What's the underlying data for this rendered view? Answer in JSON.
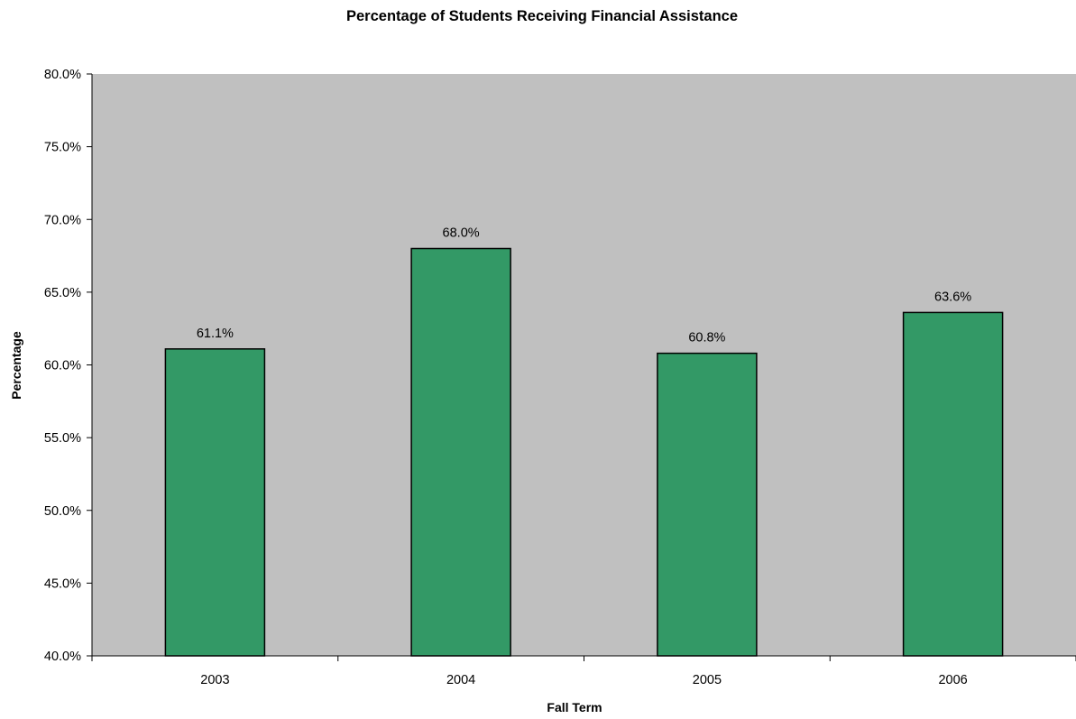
{
  "chart_data": {
    "type": "bar",
    "title": "Percentage of Students Receiving Financial Assistance",
    "xlabel": "Fall Term",
    "ylabel": "Percentage",
    "categories": [
      "2003",
      "2004",
      "2005",
      "2006"
    ],
    "values": [
      61.1,
      68.0,
      60.8,
      63.6
    ],
    "data_labels": [
      "61.1%",
      "68.0%",
      "60.8%",
      "63.6%"
    ],
    "ylim": [
      40,
      80
    ],
    "yticks": [
      40,
      45,
      50,
      55,
      60,
      65,
      70,
      75,
      80
    ],
    "ytick_labels": [
      "40.0%",
      "45.0%",
      "50.0%",
      "55.0%",
      "60.0%",
      "65.0%",
      "70.0%",
      "75.0%",
      "80.0%"
    ],
    "grid": false,
    "legend": "none",
    "colors": {
      "bar": "#339966",
      "plot_background": "#c0c0c0",
      "bar_outline": "#000000"
    }
  }
}
